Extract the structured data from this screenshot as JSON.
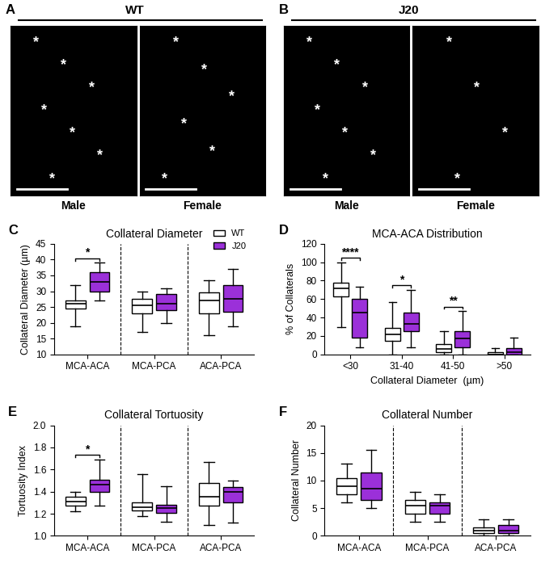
{
  "images": [
    {
      "panel": "A",
      "title": "WT",
      "mark": "*",
      "subpanels": [
        {
          "label": "Male",
          "asterisks": 7
        },
        {
          "label": "Female",
          "asterisks": 6
        }
      ]
    },
    {
      "panel": "B",
      "title": "J20",
      "mark": "*",
      "subpanels": [
        {
          "label": "Male",
          "asterisks": 7
        },
        {
          "label": "Female",
          "asterisks": 4
        }
      ]
    }
  ],
  "chart_data": [
    {
      "type": "box",
      "panel": "C",
      "title": "Collateral Diameter",
      "y_label": "Collateral Diameter (µm)",
      "categories": [
        "MCA-ACA",
        "MCA-PCA",
        "ACA-PCA"
      ],
      "ylim": [
        10,
        45
      ],
      "yticks": [
        10,
        15,
        20,
        25,
        30,
        35,
        40,
        45
      ],
      "legend": "upper right",
      "series": [
        {
          "name": "WT",
          "color": "#ffffff",
          "values": [
            {
              "whislo": 19,
              "q1": 24.5,
              "med": 26,
              "q3": 27,
              "whishi": 32
            },
            {
              "whislo": 17,
              "q1": 23,
              "med": 25.5,
              "q3": 27.5,
              "whishi": 30
            },
            {
              "whislo": 16,
              "q1": 23,
              "med": 27,
              "q3": 29.5,
              "whishi": 33.5
            }
          ]
        },
        {
          "name": "J20",
          "color": "#9b30d9",
          "values": [
            {
              "whislo": 27,
              "q1": 30,
              "med": 33,
              "q3": 36,
              "whishi": 39
            },
            {
              "whislo": 20,
              "q1": 24,
              "med": 26,
              "q3": 29,
              "whishi": 31
            },
            {
              "whislo": 19,
              "q1": 23.5,
              "med": 27.5,
              "q3": 32,
              "whishi": 37
            }
          ]
        }
      ],
      "annotations": [
        {
          "category": "MCA-ACA",
          "text": "*"
        }
      ]
    },
    {
      "type": "box",
      "panel": "D",
      "title": "MCA-ACA Distribution",
      "y_label": "% of Collaterals",
      "x_label": "Collateral Diameter  (µm)",
      "categories": [
        "<30",
        "31-40",
        "41-50",
        ">50"
      ],
      "ylim": [
        0,
        120
      ],
      "yticks": [
        0,
        20,
        40,
        60,
        80,
        100,
        120
      ],
      "series": [
        {
          "name": "WT",
          "color": "#ffffff",
          "values": [
            {
              "whislo": 30,
              "q1": 63,
              "med": 72,
              "q3": 78,
              "whishi": 100
            },
            {
              "whislo": 0,
              "q1": 15,
              "med": 22,
              "q3": 29,
              "whishi": 57
            },
            {
              "whislo": 0,
              "q1": 2,
              "med": 6,
              "q3": 11,
              "whishi": 25
            },
            {
              "whislo": 0,
              "q1": 0,
              "med": 0,
              "q3": 2,
              "whishi": 7
            }
          ]
        },
        {
          "name": "J20",
          "color": "#9b30d9",
          "values": [
            {
              "whislo": 8,
              "q1": 18,
              "med": 45,
              "q3": 60,
              "whishi": 73
            },
            {
              "whislo": 8,
              "q1": 25,
              "med": 33,
              "q3": 45,
              "whishi": 70
            },
            {
              "whislo": 0,
              "q1": 8,
              "med": 17,
              "q3": 25,
              "whishi": 47
            },
            {
              "whislo": 0,
              "q1": 0,
              "med": 2,
              "q3": 7,
              "whishi": 18
            }
          ]
        }
      ],
      "annotations": [
        {
          "category": "<30",
          "text": "****"
        },
        {
          "category": "31-40",
          "text": "*"
        },
        {
          "category": "41-50",
          "text": "**"
        }
      ]
    },
    {
      "type": "box",
      "panel": "E",
      "title": "Collateral Tortuosity",
      "y_label": "Tortuosity Index",
      "categories": [
        "MCA-ACA",
        "MCA-PCA",
        "ACA-PCA"
      ],
      "ylim": [
        1.0,
        2.0
      ],
      "yticks": [
        {
          "value": 1.0,
          "label": "1.0"
        },
        {
          "value": 1.2,
          "label": "1.2"
        },
        {
          "value": 1.4,
          "label": "1.4"
        },
        {
          "value": 1.6,
          "label": "1.6"
        },
        {
          "value": 1.8,
          "label": "1.8"
        },
        {
          "value": 2.0,
          "label": "2.0"
        }
      ],
      "series": [
        {
          "name": "WT",
          "color": "#ffffff",
          "values": [
            {
              "whislo": 1.22,
              "q1": 1.27,
              "med": 1.31,
              "q3": 1.35,
              "whishi": 1.4
            },
            {
              "whislo": 1.18,
              "q1": 1.23,
              "med": 1.26,
              "q3": 1.3,
              "whishi": 1.56
            },
            {
              "whislo": 1.1,
              "q1": 1.27,
              "med": 1.35,
              "q3": 1.48,
              "whishi": 1.67
            }
          ]
        },
        {
          "name": "J20",
          "color": "#9b30d9",
          "values": [
            {
              "whislo": 1.27,
              "q1": 1.4,
              "med": 1.46,
              "q3": 1.51,
              "whishi": 1.69
            },
            {
              "whislo": 1.13,
              "q1": 1.21,
              "med": 1.25,
              "q3": 1.28,
              "whishi": 1.45
            },
            {
              "whislo": 1.12,
              "q1": 1.3,
              "med": 1.4,
              "q3": 1.44,
              "whishi": 1.5
            }
          ]
        }
      ],
      "annotations": [
        {
          "category": "MCA-ACA",
          "text": "*"
        }
      ]
    },
    {
      "type": "box",
      "panel": "F",
      "title": "Collateral Number",
      "y_label": "Collateral Number",
      "categories": [
        "MCA-ACA",
        "MCA-PCA",
        "ACA-PCA"
      ],
      "ylim": [
        0,
        20
      ],
      "yticks": [
        0,
        5,
        10,
        15,
        20
      ],
      "series": [
        {
          "name": "WT",
          "color": "#ffffff",
          "values": [
            {
              "whislo": 6,
              "q1": 7.5,
              "med": 9,
              "q3": 10.5,
              "whishi": 13
            },
            {
              "whislo": 2.5,
              "q1": 4,
              "med": 5.5,
              "q3": 6.5,
              "whishi": 8
            },
            {
              "whislo": 0,
              "q1": 0.5,
              "med": 1,
              "q3": 1.5,
              "whishi": 3
            }
          ]
        },
        {
          "name": "J20",
          "color": "#9b30d9",
          "values": [
            {
              "whislo": 5,
              "q1": 6.5,
              "med": 8.5,
              "q3": 11.5,
              "whishi": 15.5
            },
            {
              "whislo": 2.5,
              "q1": 4,
              "med": 5.5,
              "q3": 6,
              "whishi": 7.5
            },
            {
              "whislo": 0,
              "q1": 0.5,
              "med": 1,
              "q3": 2,
              "whishi": 3
            }
          ]
        }
      ]
    }
  ]
}
